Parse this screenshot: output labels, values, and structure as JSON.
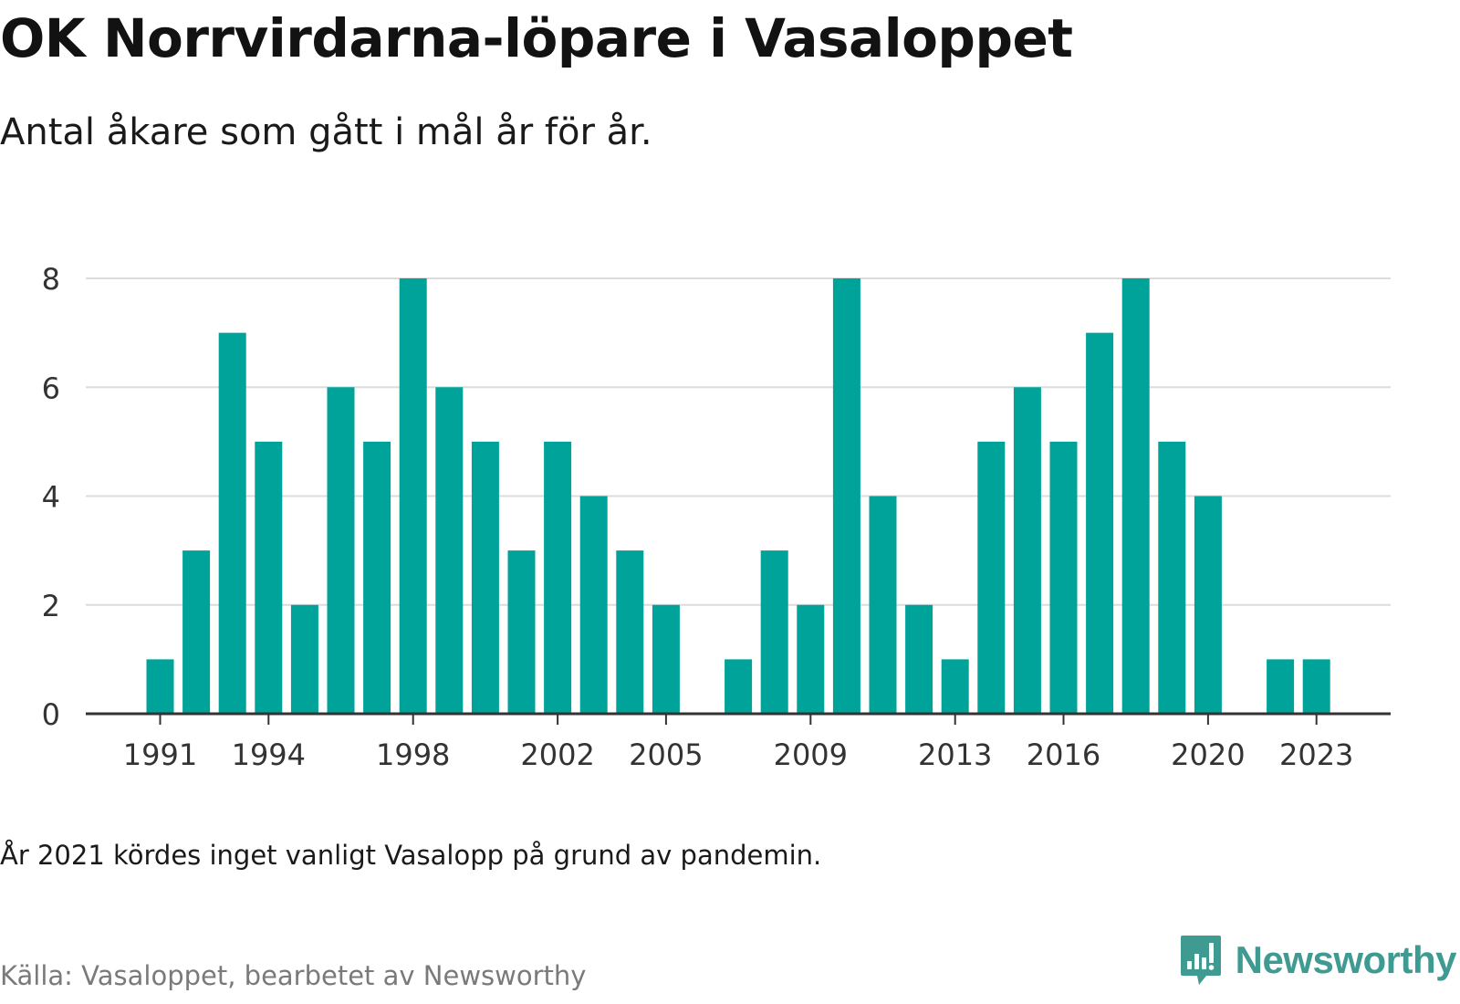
{
  "header": {
    "title": "OK Norrvirdarna-löpare i Vasaloppet",
    "subtitle": "Antal åkare som gått i mål år för år."
  },
  "footer": {
    "note": "År 2021 kördes inget vanligt Vasalopp på grund av pandemin.",
    "source": "Källa: Vasaloppet, bearbetet av Newsworthy",
    "brand": "Newsworthy",
    "brand_icon": "newsworthy-logo-icon"
  },
  "colors": {
    "bar": "#00a39a",
    "grid": "#dcdcdc",
    "axis": "#333333",
    "tick_label": "#333333",
    "brand": "#3f9a92"
  },
  "chart_data": {
    "type": "bar",
    "categories": [
      "1991",
      "1992",
      "1993",
      "1994",
      "1995",
      "1996",
      "1997",
      "1998",
      "1999",
      "2000",
      "2001",
      "2002",
      "2003",
      "2004",
      "2005",
      "2006",
      "2007",
      "2008",
      "2009",
      "2010",
      "2011",
      "2012",
      "2013",
      "2014",
      "2015",
      "2016",
      "2017",
      "2018",
      "2019",
      "2020",
      "2021",
      "2022",
      "2023"
    ],
    "values": [
      1,
      3,
      7,
      5,
      2,
      6,
      5,
      8,
      6,
      5,
      3,
      5,
      4,
      3,
      2,
      0,
      1,
      3,
      2,
      8,
      4,
      2,
      1,
      5,
      6,
      5,
      7,
      8,
      5,
      4,
      0,
      1,
      1
    ],
    "x_tick_labels": [
      "1991",
      "1994",
      "1998",
      "2002",
      "2005",
      "2009",
      "2013",
      "2016",
      "2020",
      "2023"
    ],
    "y_ticks": [
      0,
      2,
      4,
      6,
      8
    ],
    "ylim": [
      0,
      8
    ],
    "grid": true,
    "legend": "none"
  }
}
